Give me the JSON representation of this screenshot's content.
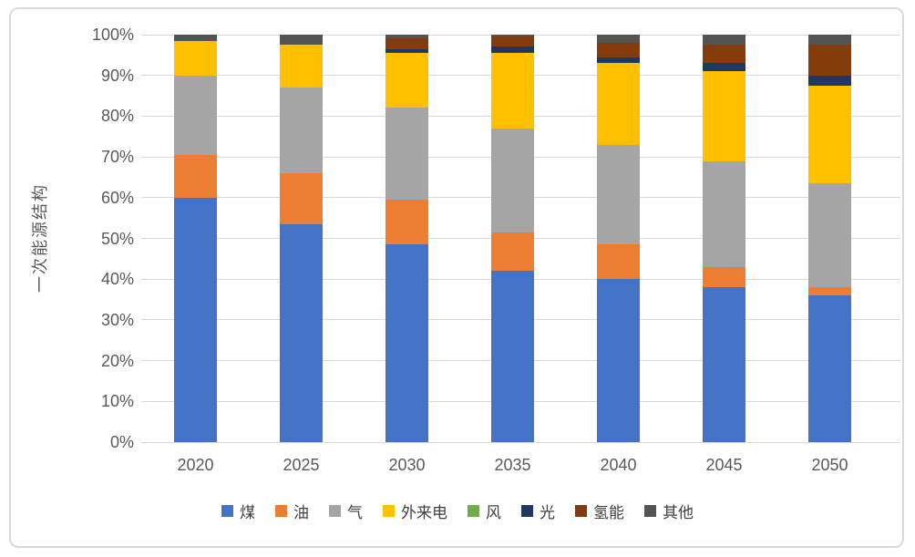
{
  "chart_data": {
    "type": "bar",
    "stacked": true,
    "percent_stacked": true,
    "title": "",
    "xlabel": "",
    "ylabel": "一次能源结构",
    "categories": [
      "2020",
      "2025",
      "2030",
      "2035",
      "2040",
      "2045",
      "2050"
    ],
    "series": [
      {
        "id": "coal",
        "name": "煤",
        "color": "#4472C4",
        "values": [
          60,
          53.5,
          48.5,
          42,
          40,
          38,
          36
        ]
      },
      {
        "id": "oil",
        "name": "油",
        "color": "#ED7D31",
        "values": [
          10.5,
          12.5,
          11,
          9.5,
          8.5,
          5,
          2
        ]
      },
      {
        "id": "gas",
        "name": "气",
        "color": "#A5A5A5",
        "values": [
          19.5,
          21,
          22.5,
          25.5,
          24.5,
          26,
          25.5
        ]
      },
      {
        "id": "imported-electricity",
        "name": "外来电",
        "color": "#FFC000",
        "values": [
          8.5,
          10.5,
          13.5,
          18.5,
          20,
          22,
          24
        ]
      },
      {
        "id": "wind",
        "name": "风",
        "color": "#70AD47",
        "values": [
          0,
          0,
          0,
          0,
          0,
          0,
          0
        ]
      },
      {
        "id": "solar",
        "name": "光",
        "color": "#1F3864",
        "values": [
          0,
          0,
          1,
          1.5,
          1.5,
          2,
          2.5
        ]
      },
      {
        "id": "hydrogen",
        "name": "氢能",
        "color": "#843C0C",
        "values": [
          0,
          0,
          2.5,
          2.5,
          3.5,
          4.5,
          7.5
        ]
      },
      {
        "id": "other",
        "name": "其他",
        "color": "#545454",
        "values": [
          1.5,
          2.5,
          1,
          0.5,
          2,
          2.5,
          2.5
        ]
      }
    ],
    "y_ticks": [
      "0%",
      "10%",
      "20%",
      "30%",
      "40%",
      "50%",
      "60%",
      "70%",
      "80%",
      "90%",
      "100%"
    ],
    "ylim": [
      0,
      100
    ],
    "grid": true,
    "legend_position": "bottom"
  },
  "colors": {
    "background": "#FFFFFF",
    "border": "#D9D9D9",
    "gridline": "#D9D9D9",
    "axis_text": "#595959",
    "legend_text": "#404040"
  }
}
